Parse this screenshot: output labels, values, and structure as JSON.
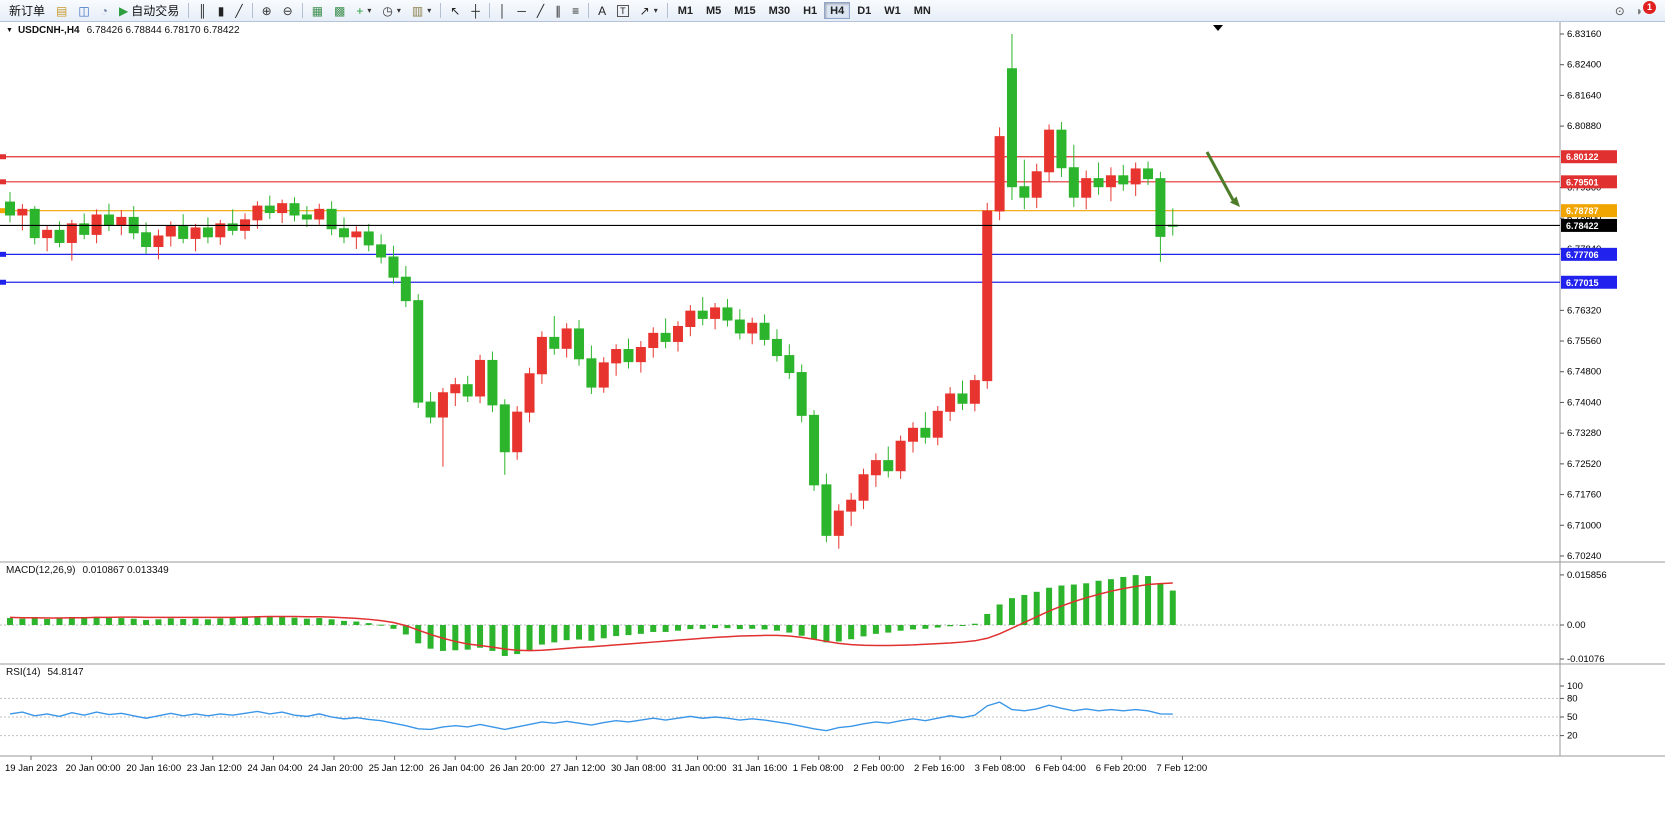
{
  "toolbar": {
    "active_timeframe": "H4",
    "items": [
      {
        "kind": "btn",
        "name": "new-order-button",
        "label": "新订单"
      },
      {
        "kind": "icon",
        "name": "market-watch-icon",
        "glyph": "▤",
        "color": "#c9992a"
      },
      {
        "kind": "icon",
        "name": "new-chart-icon",
        "glyph": "◫",
        "color": "#3a6fbe"
      },
      {
        "kind": "icon",
        "name": "profiles-icon",
        "glyph": "◔",
        "color": "#6b7f9e"
      },
      {
        "kind": "btn",
        "name": "autotrading-button",
        "label": "自动交易",
        "glyph": "▶",
        "color": "#2e9e3f"
      },
      {
        "kind": "sep"
      },
      {
        "kind": "icon",
        "name": "bar-chart-icon",
        "glyph": "║",
        "color": "#222222"
      },
      {
        "kind": "icon",
        "name": "candlestick-chart-icon",
        "glyph": "▮",
        "color": "#222222"
      },
      {
        "kind": "icon",
        "name": "line-chart-icon",
        "glyph": "╱",
        "color": "#222222"
      },
      {
        "kind": "sep"
      },
      {
        "kind": "icon",
        "name": "zoom-in-icon",
        "glyph": "⊕",
        "color": "#333333"
      },
      {
        "kind": "icon",
        "name": "zoom-out-icon",
        "glyph": "⊖",
        "color": "#333333"
      },
      {
        "kind": "sep"
      },
      {
        "kind": "icon",
        "name": "tile-windows-icon",
        "glyph": "▦",
        "color": "#3f8f4f"
      },
      {
        "kind": "icon",
        "name": "cascade-windows-icon",
        "glyph": "▩",
        "color": "#3f8f4f"
      },
      {
        "kind": "icon",
        "name": "indicators-icon",
        "glyph": "+",
        "color": "#2e9e3f",
        "caret": true
      },
      {
        "kind": "icon",
        "name": "periods-icon",
        "glyph": "◷",
        "color": "#333333",
        "caret": true
      },
      {
        "kind": "icon",
        "name": "templates-icon",
        "glyph": "▥",
        "color": "#8a7f4a",
        "caret": true
      },
      {
        "kind": "sep"
      },
      {
        "kind": "icon",
        "name": "cursor-icon",
        "glyph": "↖",
        "color": "#222222"
      },
      {
        "kind": "icon",
        "name": "crosshair-icon",
        "glyph": "┼",
        "color": "#222222"
      },
      {
        "kind": "sep"
      },
      {
        "kind": "icon",
        "name": "vertical-line-icon",
        "glyph": "│",
        "color": "#222222"
      },
      {
        "kind": "icon",
        "name": "horizontal-line-icon",
        "glyph": "─",
        "color": "#222222"
      },
      {
        "kind": "icon",
        "name": "trendline-icon",
        "glyph": "╱",
        "color": "#222222"
      },
      {
        "kind": "icon",
        "name": "channel-icon",
        "glyph": "∥",
        "color": "#222222"
      },
      {
        "kind": "icon",
        "name": "fibonacci-icon",
        "glyph": "≡",
        "color": "#222222"
      },
      {
        "kind": "sep"
      },
      {
        "kind": "icon",
        "name": "text-icon",
        "glyph": "A",
        "color": "#222222"
      },
      {
        "kind": "icon",
        "name": "text-label-icon",
        "glyph": "T",
        "boxed": true,
        "color": "#222222"
      },
      {
        "kind": "icon",
        "name": "arrows-icon",
        "glyph": "↗",
        "color": "#222222",
        "caret": true
      },
      {
        "kind": "sep"
      },
      {
        "kind": "tf",
        "name": "timeframe-m1",
        "label": "M1"
      },
      {
        "kind": "tf",
        "name": "timeframe-m5",
        "label": "M5"
      },
      {
        "kind": "tf",
        "name": "timeframe-m15",
        "label": "M15"
      },
      {
        "kind": "tf",
        "name": "timeframe-m30",
        "label": "M30"
      },
      {
        "kind": "tf",
        "name": "timeframe-h1",
        "label": "H1"
      },
      {
        "kind": "tf",
        "name": "timeframe-h4",
        "label": "H4"
      },
      {
        "kind": "tf",
        "name": "timeframe-d1",
        "label": "D1"
      },
      {
        "kind": "tf",
        "name": "timeframe-w1",
        "label": "W1"
      },
      {
        "kind": "tf",
        "name": "timeframe-mn",
        "label": "MN"
      },
      {
        "kind": "spacer"
      },
      {
        "kind": "icon",
        "name": "search-icon",
        "glyph": "⊙",
        "color": "#555555"
      },
      {
        "kind": "icon",
        "name": "notifications-icon",
        "glyph": "◗",
        "color": "#777777",
        "badge": "1"
      }
    ]
  },
  "chart": {
    "collapse_glyph": "▼",
    "symbol_title": "USDCNH-,H4",
    "ohlc_line": "6.78426 6.78844 6.78170 6.78422"
  },
  "chart_data": {
    "type": "candlestick",
    "symbol": "USDCNH-",
    "timeframe": "H4",
    "colors": {
      "bull": "#e8342e",
      "bear": "#2cb52c",
      "resistance_line": "#e03030",
      "pivot_line": "#f0a500",
      "support_line": "#2222ee",
      "current_price_line": "#000000",
      "macd_histogram": "#2cb52c",
      "macd_signal": "#e03030",
      "rsi_line": "#3a96e8",
      "arrow": "#4e7d2a"
    },
    "price_axis_ticks": [
      "6.83160",
      "6.82400",
      "6.81640",
      "6.80880",
      "6.80120",
      "6.79360",
      "6.78600",
      "6.77840",
      "6.77080",
      "6.76320",
      "6.75560",
      "6.74800",
      "6.74040",
      "6.73280",
      "6.72520",
      "6.71760",
      "6.71000",
      "6.70240"
    ],
    "price_axis_range": {
      "max": 6.8316,
      "min": 6.7024
    },
    "hlines": [
      {
        "price": 6.80122,
        "label": "6.80122",
        "color": "#e03030"
      },
      {
        "price": 6.79501,
        "label": "6.79501",
        "color": "#e03030"
      },
      {
        "price": 6.78787,
        "label": "6.78787",
        "color": "#f0a500"
      },
      {
        "price": 6.77706,
        "label": "6.77706",
        "color": "#2222ee"
      },
      {
        "price": 6.77015,
        "label": "6.77015",
        "color": "#2222ee"
      }
    ],
    "current_price": {
      "price": 6.78422,
      "label": "6.78422",
      "color": "#000000"
    },
    "time_labels": [
      "19 Jan 2023",
      "20 Jan 00:00",
      "20 Jan 16:00",
      "23 Jan 12:00",
      "24 Jan 04:00",
      "24 Jan 20:00",
      "25 Jan 12:00",
      "26 Jan 04:00",
      "26 Jan 20:00",
      "27 Jan 12:00",
      "30 Jan 08:00",
      "31 Jan 00:00",
      "31 Jan 16:00",
      "1 Feb 08:00",
      "2 Feb 00:00",
      "2 Feb 16:00",
      "3 Feb 08:00",
      "6 Feb 04:00",
      "6 Feb 20:00",
      "7 Feb 12:00"
    ],
    "candles": [
      [
        6.79,
        6.7925,
        6.785,
        6.7868
      ],
      [
        6.7868,
        6.7895,
        6.783,
        6.7882
      ],
      [
        6.7882,
        6.789,
        6.7795,
        6.7812
      ],
      [
        6.7812,
        6.7842,
        6.7778,
        6.783
      ],
      [
        6.783,
        6.7852,
        6.7788,
        6.78
      ],
      [
        6.78,
        6.7856,
        6.7755,
        6.7846
      ],
      [
        6.7846,
        6.7872,
        6.7808,
        6.782
      ],
      [
        6.782,
        6.7882,
        6.7798,
        6.7868
      ],
      [
        6.7868,
        6.7896,
        6.7828,
        6.7842
      ],
      [
        6.7842,
        6.788,
        6.7818,
        6.7862
      ],
      [
        6.7862,
        6.789,
        6.7808,
        6.7824
      ],
      [
        6.7824,
        6.785,
        6.7772,
        6.779
      ],
      [
        6.779,
        6.7832,
        6.7758,
        6.7816
      ],
      [
        6.7816,
        6.7852,
        6.779,
        6.784
      ],
      [
        6.784,
        6.787,
        6.7798,
        6.781
      ],
      [
        6.781,
        6.7846,
        6.7778,
        6.7836
      ],
      [
        6.7836,
        6.7862,
        6.7798,
        6.7814
      ],
      [
        6.7814,
        6.7856,
        6.7794,
        6.7846
      ],
      [
        6.7846,
        6.7882,
        6.7818,
        6.783
      ],
      [
        6.783,
        6.7872,
        6.7808,
        6.7856
      ],
      [
        6.7856,
        6.7902,
        6.7834,
        6.789
      ],
      [
        6.789,
        6.7916,
        6.7858,
        6.7874
      ],
      [
        6.7874,
        6.7906,
        6.7848,
        6.7896
      ],
      [
        6.7896,
        6.7912,
        6.7852,
        6.7868
      ],
      [
        6.7868,
        6.789,
        6.7838,
        6.7858
      ],
      [
        6.7858,
        6.7896,
        6.7844,
        6.7882
      ],
      [
        6.7882,
        6.7902,
        6.7818,
        6.7834
      ],
      [
        6.7834,
        6.7862,
        6.7798,
        6.7814
      ],
      [
        6.7814,
        6.784,
        6.7784,
        6.7826
      ],
      [
        6.7826,
        6.7846,
        6.7778,
        6.7794
      ],
      [
        6.7794,
        6.782,
        6.7748,
        6.7764
      ],
      [
        6.7764,
        6.7792,
        6.7698,
        6.7714
      ],
      [
        6.7714,
        6.7742,
        6.764,
        6.7656
      ],
      [
        6.7656,
        6.7672,
        6.739,
        6.7405
      ],
      [
        6.7405,
        6.743,
        6.7352,
        6.7368
      ],
      [
        6.7368,
        6.744,
        6.7245,
        6.7428
      ],
      [
        6.7428,
        6.7465,
        6.7395,
        6.7448
      ],
      [
        6.7448,
        6.747,
        6.7405,
        6.742
      ],
      [
        6.742,
        6.7522,
        6.7402,
        6.7508
      ],
      [
        6.7508,
        6.753,
        6.738,
        6.7398
      ],
      [
        6.7398,
        6.7412,
        6.7225,
        6.7282
      ],
      [
        6.7282,
        6.7395,
        6.7262,
        6.738
      ],
      [
        6.738,
        6.749,
        6.7355,
        6.7475
      ],
      [
        6.7475,
        6.758,
        6.745,
        6.7565
      ],
      [
        6.7565,
        6.7618,
        6.7522,
        6.7538
      ],
      [
        6.7538,
        6.76,
        6.7515,
        6.7586
      ],
      [
        6.7586,
        6.7608,
        6.7495,
        6.7512
      ],
      [
        6.7512,
        6.7545,
        6.7425,
        6.7442
      ],
      [
        6.7442,
        6.7516,
        6.7428,
        6.7502
      ],
      [
        6.7502,
        6.7548,
        6.747,
        6.7535
      ],
      [
        6.7535,
        6.7562,
        6.7488,
        6.7505
      ],
      [
        6.7505,
        6.7556,
        6.7478,
        6.754
      ],
      [
        6.754,
        6.759,
        6.7515,
        6.7575
      ],
      [
        6.7575,
        6.7612,
        6.7538,
        6.7555
      ],
      [
        6.7555,
        6.7605,
        6.753,
        6.7592
      ],
      [
        6.7592,
        6.7645,
        6.7568,
        6.763
      ],
      [
        6.763,
        6.7665,
        6.7595,
        6.7612
      ],
      [
        6.7612,
        6.765,
        6.7585,
        6.7638
      ],
      [
        6.7638,
        6.766,
        6.7592,
        6.7608
      ],
      [
        6.7608,
        6.7635,
        6.756,
        6.7576
      ],
      [
        6.7576,
        6.7614,
        6.7548,
        6.76
      ],
      [
        6.76,
        6.7622,
        6.7545,
        6.756
      ],
      [
        6.756,
        6.7585,
        6.7505,
        6.752
      ],
      [
        6.752,
        6.7548,
        6.7462,
        6.7478
      ],
      [
        6.7478,
        6.7498,
        6.7355,
        6.7372
      ],
      [
        6.7372,
        6.7385,
        6.7185,
        6.72
      ],
      [
        6.72,
        6.7228,
        6.7058,
        6.7075
      ],
      [
        6.7075,
        6.7152,
        6.7042,
        6.7135
      ],
      [
        6.7135,
        6.718,
        6.7098,
        6.7162
      ],
      [
        6.7162,
        6.724,
        6.714,
        6.7225
      ],
      [
        6.7225,
        6.7278,
        6.7195,
        6.726
      ],
      [
        6.726,
        6.7295,
        6.7218,
        6.7235
      ],
      [
        6.7235,
        6.7322,
        6.7215,
        6.7308
      ],
      [
        6.7308,
        6.7355,
        6.728,
        6.734
      ],
      [
        6.734,
        6.738,
        6.7302,
        6.7318
      ],
      [
        6.7318,
        6.7395,
        6.7298,
        6.7382
      ],
      [
        6.7382,
        6.7442,
        6.7358,
        6.7425
      ],
      [
        6.7425,
        6.7458,
        6.7385,
        6.7402
      ],
      [
        6.7402,
        6.7472,
        6.7382,
        6.7458
      ],
      [
        6.7458,
        6.7898,
        6.7438,
        6.7878
      ],
      [
        6.7878,
        6.8085,
        6.7855,
        6.8062
      ],
      [
        6.823,
        6.8316,
        6.7905,
        6.7938
      ],
      [
        6.7938,
        6.8005,
        6.7882,
        6.7912
      ],
      [
        6.7912,
        6.7995,
        6.7885,
        6.7975
      ],
      [
        6.7975,
        6.8092,
        6.795,
        6.8078
      ],
      [
        6.8078,
        6.8098,
        6.7962,
        6.7985
      ],
      [
        6.7985,
        6.8042,
        6.7888,
        6.7912
      ],
      [
        6.7912,
        6.7978,
        6.7882,
        6.7958
      ],
      [
        6.7958,
        6.7998,
        6.7918,
        6.7938
      ],
      [
        6.7938,
        6.7986,
        6.7902,
        6.7965
      ],
      [
        6.7965,
        6.7992,
        6.7928,
        6.7945
      ],
      [
        6.7945,
        6.7998,
        6.7915,
        6.7982
      ],
      [
        6.7982,
        6.8,
        6.7942,
        6.7958
      ],
      [
        6.7958,
        6.7975,
        6.7752,
        6.7815
      ],
      [
        6.78426,
        6.78844,
        6.7817,
        6.78422
      ]
    ],
    "macd": {
      "label": "MACD(12,26,9)",
      "value_text": "0.010867 0.013349",
      "axis_labels": [
        "0.015856",
        "0.00",
        "-0.01076"
      ],
      "histogram": [
        0.0022,
        0.002,
        0.0024,
        0.0019,
        0.0021,
        0.0025,
        0.0022,
        0.0026,
        0.0024,
        0.0022,
        0.002,
        0.0016,
        0.0018,
        0.0021,
        0.0019,
        0.002,
        0.0018,
        0.0021,
        0.0023,
        0.0024,
        0.0028,
        0.0026,
        0.0027,
        0.0023,
        0.002,
        0.0022,
        0.0018,
        0.0013,
        0.0011,
        0.0006,
        0.0001,
        -0.0012,
        -0.003,
        -0.0058,
        -0.0075,
        -0.0082,
        -0.008,
        -0.0078,
        -0.0072,
        -0.0082,
        -0.0098,
        -0.0092,
        -0.008,
        -0.0062,
        -0.0055,
        -0.0048,
        -0.0046,
        -0.005,
        -0.0042,
        -0.0035,
        -0.0032,
        -0.0028,
        -0.0022,
        -0.0022,
        -0.0018,
        -0.0013,
        -0.0012,
        -0.001,
        -0.001,
        -0.0013,
        -0.0012,
        -0.0014,
        -0.0018,
        -0.0024,
        -0.0034,
        -0.0046,
        -0.0055,
        -0.0052,
        -0.0045,
        -0.0036,
        -0.0028,
        -0.0024,
        -0.0018,
        -0.0014,
        -0.0012,
        -0.0008,
        -0.0004,
        -0.0002,
        0.0004,
        0.0035,
        0.0065,
        0.0085,
        0.0095,
        0.0105,
        0.0118,
        0.0125,
        0.0128,
        0.0132,
        0.014,
        0.0145,
        0.0152,
        0.0158,
        0.0155,
        0.013,
        0.0109
      ],
      "signal": [
        0.0024,
        0.0023,
        0.0023,
        0.0022,
        0.0022,
        0.0023,
        0.0023,
        0.0024,
        0.0024,
        0.0025,
        0.0025,
        0.0024,
        0.0024,
        0.0024,
        0.0024,
        0.0024,
        0.0024,
        0.0024,
        0.0024,
        0.0025,
        0.0026,
        0.0027,
        0.0027,
        0.0027,
        0.0026,
        0.0026,
        0.0025,
        0.0023,
        0.0021,
        0.0018,
        0.0014,
        0.0008,
        -0.0002,
        -0.0016,
        -0.003,
        -0.0042,
        -0.0052,
        -0.006,
        -0.0065,
        -0.007,
        -0.0076,
        -0.008,
        -0.0081,
        -0.008,
        -0.0077,
        -0.0074,
        -0.0071,
        -0.0069,
        -0.0066,
        -0.0063,
        -0.006,
        -0.0057,
        -0.0054,
        -0.0051,
        -0.0048,
        -0.0045,
        -0.0042,
        -0.0039,
        -0.0037,
        -0.0035,
        -0.0034,
        -0.0033,
        -0.0033,
        -0.0035,
        -0.0039,
        -0.0045,
        -0.0052,
        -0.0058,
        -0.0062,
        -0.0064,
        -0.0065,
        -0.0065,
        -0.0064,
        -0.0063,
        -0.0061,
        -0.0059,
        -0.0057,
        -0.0054,
        -0.005,
        -0.0042,
        -0.0028,
        -0.001,
        0.0008,
        0.0026,
        0.0044,
        0.006,
        0.0074,
        0.0086,
        0.0097,
        0.0107,
        0.0115,
        0.0122,
        0.0128,
        0.0131,
        0.0133
      ]
    },
    "rsi": {
      "label": "RSI(14)",
      "value_text": "54.8147",
      "axis_labels": [
        "100",
        "80",
        "50",
        "20"
      ],
      "levels": [
        80,
        50,
        20
      ],
      "series": [
        55,
        58,
        52,
        55,
        51,
        57,
        53,
        58,
        54,
        56,
        52,
        48,
        52,
        56,
        52,
        55,
        52,
        55,
        53,
        56,
        59,
        55,
        58,
        53,
        51,
        55,
        50,
        47,
        49,
        46,
        44,
        40,
        36,
        31,
        30,
        34,
        36,
        34,
        38,
        34,
        30,
        34,
        38,
        42,
        40,
        43,
        40,
        37,
        41,
        44,
        42,
        45,
        48,
        45,
        48,
        51,
        48,
        50,
        48,
        45,
        47,
        45,
        42,
        39,
        35,
        31,
        28,
        33,
        35,
        39,
        42,
        40,
        44,
        47,
        44,
        48,
        52,
        49,
        53,
        68,
        74,
        62,
        60,
        63,
        69,
        64,
        60,
        63,
        60,
        62,
        60,
        62,
        60,
        55,
        54.8
      ]
    },
    "annotation_arrow": {
      "description": "bearish arrow pointing down-right below resistance",
      "color": "#4e7d2a"
    }
  }
}
